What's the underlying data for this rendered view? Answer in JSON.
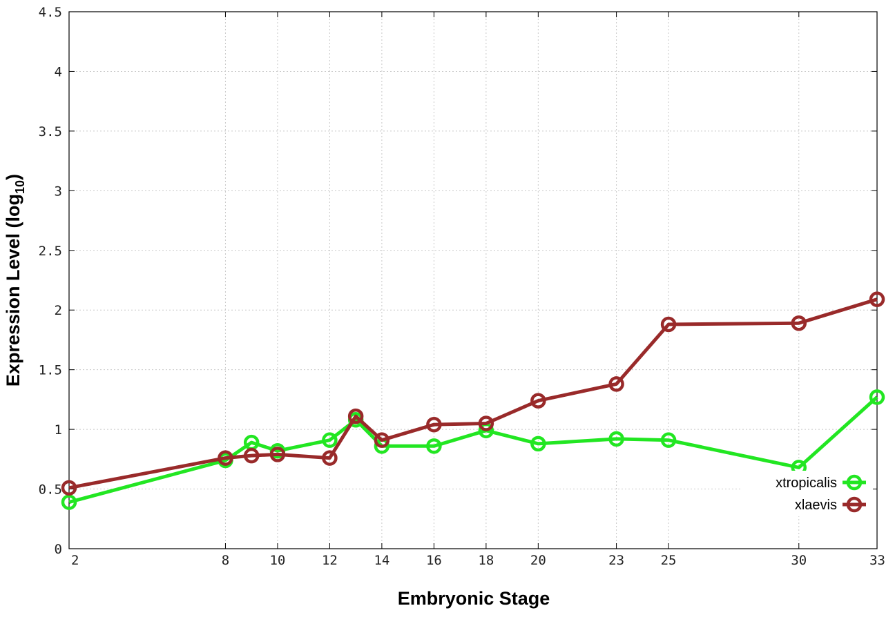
{
  "chart_data": {
    "type": "line",
    "xlabel": "Embryonic Stage",
    "ylabel_main": "Expression Level (log",
    "ylabel_sub": "10",
    "ylabel_close": ")",
    "xlim": [
      2,
      33
    ],
    "ylim": [
      0,
      4.5
    ],
    "x_ticks": [
      2,
      8,
      10,
      12,
      14,
      16,
      18,
      20,
      23,
      25,
      30,
      33
    ],
    "y_ticks": [
      0,
      0.5,
      1,
      1.5,
      2,
      2.5,
      3,
      3.5,
      4,
      4.5
    ],
    "y_tick_labels": [
      "0",
      "0.5",
      "1",
      "1.5",
      "2",
      "2.5",
      "3",
      "3.5",
      "4",
      "4.5"
    ],
    "grid": true,
    "legend_position": "bottom-right",
    "series": [
      {
        "name": "xtropicalis",
        "color": "#22e622",
        "x": [
          2,
          8,
          9,
          10,
          12,
          13,
          14,
          16,
          18,
          20,
          23,
          25,
          30,
          33
        ],
        "y": [
          0.39,
          0.74,
          0.89,
          0.82,
          0.91,
          1.08,
          0.86,
          0.86,
          0.99,
          0.88,
          0.92,
          0.91,
          0.68,
          1.27
        ]
      },
      {
        "name": "xlaevis",
        "color": "#992a2a",
        "x": [
          2,
          8,
          9,
          10,
          12,
          13,
          14,
          16,
          18,
          20,
          23,
          25,
          30,
          33
        ],
        "y": [
          0.51,
          0.76,
          0.78,
          0.79,
          0.76,
          1.11,
          0.91,
          1.04,
          1.05,
          1.24,
          1.38,
          1.88,
          1.89,
          2.09
        ]
      }
    ]
  }
}
